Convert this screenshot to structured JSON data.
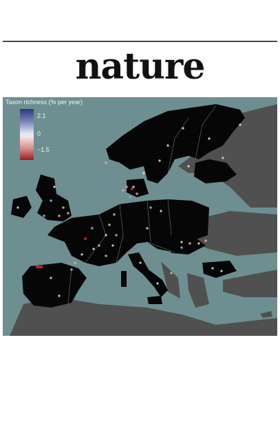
{
  "masthead": {
    "title": "nature"
  },
  "map": {
    "region": "Europe",
    "colors": {
      "sea": "#6e8f91",
      "land_in_study": "#060606",
      "land_outside_study": "#505050",
      "borders": "#6d7a80"
    },
    "legend": {
      "title": "Taxon richness (% per year)",
      "max_label": "2.1",
      "mid_label": "0",
      "min_label": "−1.5",
      "scale_colors": [
        "#283a7c",
        "#e6e8f1",
        "#9a1c22"
      ]
    }
  }
}
